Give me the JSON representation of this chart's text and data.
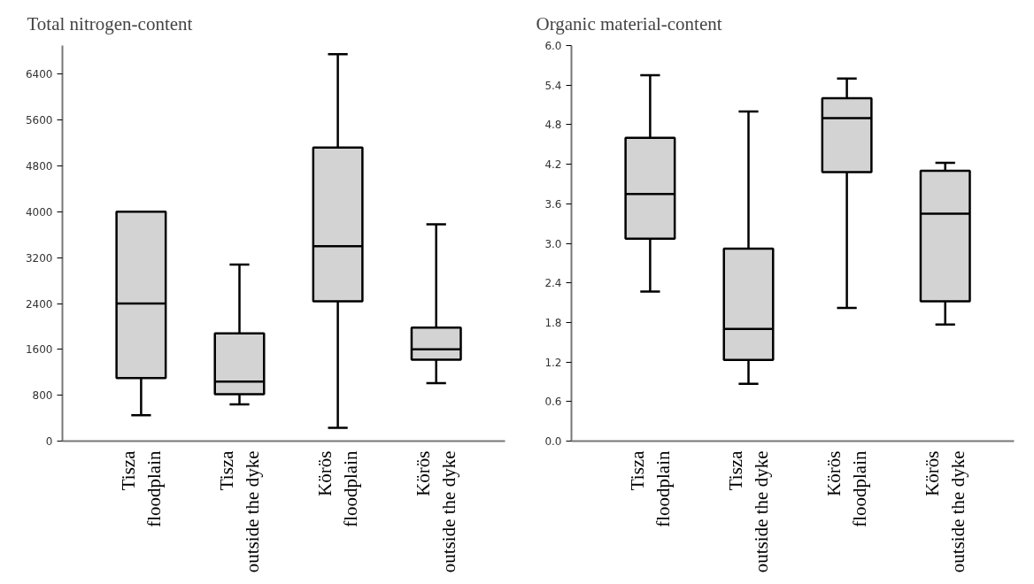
{
  "chart_data": [
    {
      "type": "box",
      "title": "Total nitrogen-content",
      "categories": [
        "Tisza floodplain",
        "Tisza outside the dyke",
        "Körös floodplain",
        "Körös outside the dyke"
      ],
      "boxes": [
        {
          "low": 450,
          "q1": 1100,
          "median": 2400,
          "q3": 4000,
          "high": 4000
        },
        {
          "low": 640,
          "q1": 820,
          "median": 1040,
          "q3": 1880,
          "high": 3080
        },
        {
          "low": 230,
          "q1": 2440,
          "median": 3400,
          "q3": 5120,
          "high": 6750
        },
        {
          "low": 1010,
          "q1": 1420,
          "median": 1600,
          "q3": 1980,
          "high": 3780
        }
      ],
      "color": "#d3d3d3",
      "ylim": [
        0,
        6900
      ],
      "yticks": [
        0,
        800,
        1600,
        2400,
        3200,
        4000,
        4800,
        5600,
        6400
      ],
      "grid": false
    },
    {
      "type": "box",
      "title": "Organic material-content",
      "categories": [
        "Tisza floodplain",
        "Tisza outside the dyke",
        "Körös floodplain",
        "Körös outside the dyke"
      ],
      "boxes": [
        {
          "low": 2.27,
          "q1": 3.07,
          "median": 3.75,
          "q3": 4.6,
          "high": 5.55
        },
        {
          "low": 0.87,
          "q1": 1.23,
          "median": 1.7,
          "q3": 2.92,
          "high": 5.0
        },
        {
          "low": 2.02,
          "q1": 4.08,
          "median": 4.9,
          "q3": 5.2,
          "high": 5.5
        },
        {
          "low": 1.77,
          "q1": 2.12,
          "median": 3.45,
          "q3": 4.1,
          "high": 4.22
        }
      ],
      "color": "#d3d3d3",
      "ylim": [
        0,
        6.0
      ],
      "yticks": [
        {
          "value": 0,
          "label": "0.0"
        },
        0.6,
        1.2,
        1.8,
        2.4,
        {
          "value": 3,
          "label": "3.0"
        },
        3.6,
        4.2,
        4.8,
        5.4,
        {
          "value": 6,
          "label": "6.0"
        }
      ],
      "grid": false
    }
  ]
}
